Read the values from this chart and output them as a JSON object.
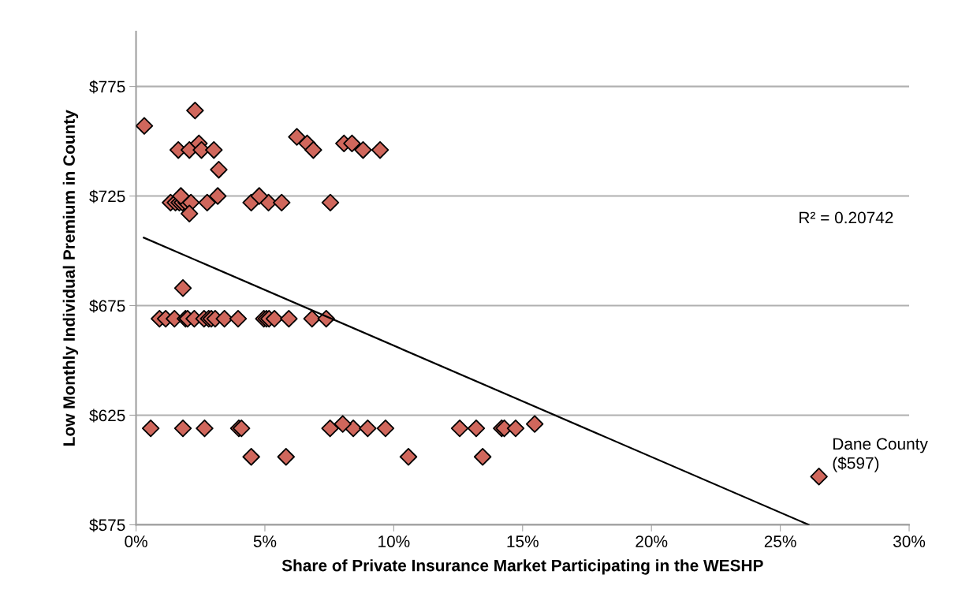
{
  "chart_data": {
    "type": "scatter",
    "xlabel": "Share of Private Insurance Market Participating in the WESHP",
    "ylabel": "Low Monthly Individual Premium in County",
    "marker": "diamond",
    "xlim": [
      0,
      30
    ],
    "xticks": [
      {
        "value": 0,
        "label": "0%"
      },
      {
        "value": 5,
        "label": "5%"
      },
      {
        "value": 10,
        "label": "10%"
      },
      {
        "value": 15,
        "label": "15%"
      },
      {
        "value": 20,
        "label": "20%"
      },
      {
        "value": 25,
        "label": "25%"
      },
      {
        "value": 30,
        "label": "30%"
      }
    ],
    "ylim": [
      575,
      800
    ],
    "yticks": [
      {
        "value": 575,
        "label": "$575"
      },
      {
        "value": 625,
        "label": "$625"
      },
      {
        "value": 675,
        "label": "$675"
      },
      {
        "value": 725,
        "label": "$725"
      },
      {
        "value": 775,
        "label": "$775"
      }
    ],
    "grid": "y",
    "series": [
      {
        "color": "#d0675c",
        "x": [
          0.32,
          2.29,
          1.64,
          2.07,
          2.44,
          2.54,
          3.02,
          3.21,
          6.24,
          6.64,
          6.88,
          8.07,
          8.38,
          8.81,
          9.47,
          1.34,
          1.53,
          1.68,
          1.8,
          1.95,
          2.13,
          2.76,
          4.47,
          5.14,
          5.65,
          7.54,
          1.74,
          3.17,
          4.78,
          2.07,
          1.82,
          0.91,
          1.15,
          1.49,
          1.92,
          2.0,
          2.26,
          2.64,
          2.82,
          2.92,
          3.07,
          3.43,
          3.96,
          4.96,
          5.06,
          5.16,
          5.37,
          5.93,
          6.83,
          7.38,
          0.57,
          1.82,
          2.66,
          3.99,
          4.09,
          7.53,
          8.43,
          8.99,
          9.68,
          12.56,
          13.2,
          14.19,
          14.29,
          14.73,
          8.02,
          15.47,
          4.47,
          5.82,
          10.57,
          13.45,
          26.5
        ],
        "values": [
          757,
          764,
          746,
          746,
          749,
          746,
          746,
          737,
          752,
          749,
          746,
          749,
          749,
          746,
          746,
          722,
          722,
          722,
          722,
          722,
          722,
          722,
          722,
          722,
          722,
          722,
          725,
          725,
          725,
          717,
          683,
          669,
          669,
          669,
          669,
          669,
          669,
          669,
          669,
          669,
          669,
          669,
          669,
          669,
          669,
          669,
          669,
          669,
          669,
          669,
          619,
          619,
          619,
          619,
          619,
          619,
          619,
          619,
          619,
          619,
          619,
          619,
          619,
          619,
          621,
          621,
          606,
          606,
          606,
          606,
          597
        ]
      },
      {
        "type": "line",
        "color": "#000000",
        "x": [
          0.3,
          26.1
        ],
        "values": [
          706,
          575
        ],
        "marker": "none",
        "line_style": "solid"
      }
    ],
    "annotations": [
      "R² = 0.20742",
      {
        "text": "Dane County\n($597)",
        "x": 26.5,
        "y": 597
      }
    ],
    "legend": false
  }
}
